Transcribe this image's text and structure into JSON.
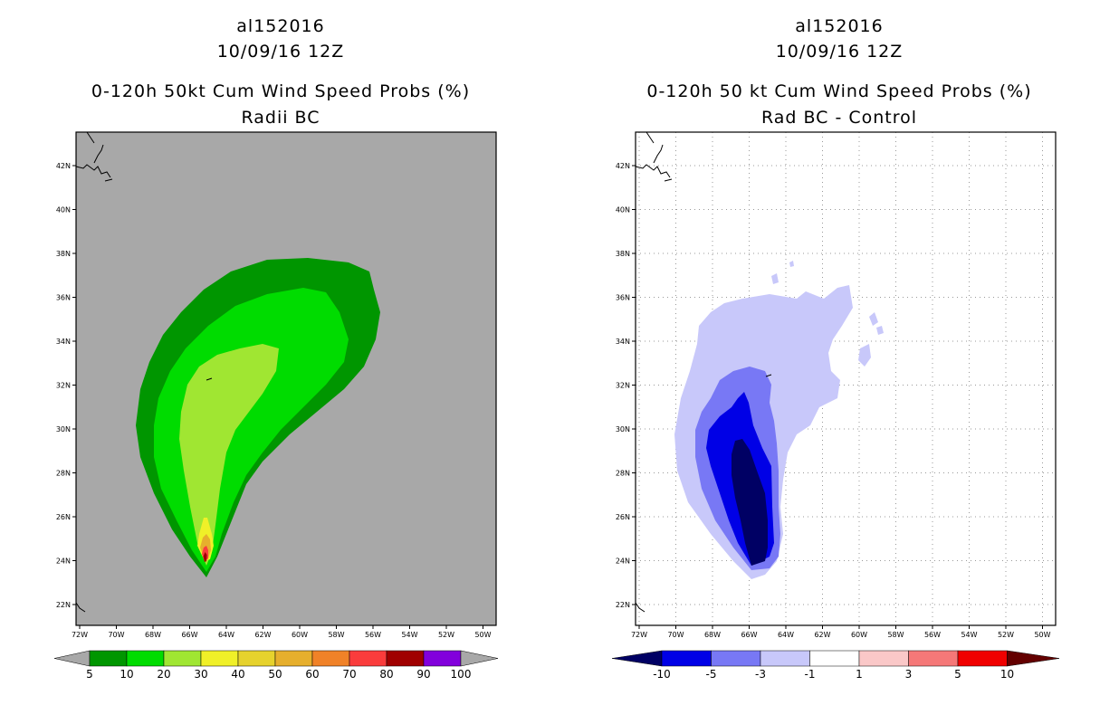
{
  "left": {
    "title_line1": "al152016",
    "title_line2": "10/09/16 12Z",
    "title_line3": "0-120h 50kt Cum Wind Speed Probs (%)",
    "title_line4": "Radii BC",
    "lat_labels": [
      "42N",
      "40N",
      "38N",
      "36N",
      "34N",
      "32N",
      "30N",
      "28N",
      "26N",
      "24N",
      "22N"
    ],
    "lon_labels": [
      "72W",
      "70W",
      "68W",
      "66W",
      "64W",
      "62W",
      "60W",
      "58W",
      "56W",
      "54W",
      "52W",
      "50W"
    ],
    "colorbar_labels": [
      "5",
      "10",
      "20",
      "30",
      "40",
      "50",
      "60",
      "70",
      "80",
      "90",
      "100"
    ],
    "colors": {
      "background": "#a8a8a8",
      "c5": "#009600",
      "c10": "#00dc00",
      "c20": "#a0e632",
      "c30": "#f0f028",
      "c40": "#e6d22d",
      "c50": "#e6af2d",
      "c60": "#f08228",
      "c70": "#fa3c3c",
      "c80": "#a00000",
      "c90": "#8200dc",
      "c100": "#a000c8"
    }
  },
  "right": {
    "title_line1": "al152016",
    "title_line2": "10/09/16 12Z",
    "title_line3": "0-120h 50 kt Cum Wind Speed Probs (%)",
    "title_line4": "Rad BC - Control",
    "lat_labels": [
      "42N",
      "40N",
      "38N",
      "36N",
      "34N",
      "32N",
      "30N",
      "28N",
      "26N",
      "24N",
      "22N"
    ],
    "lon_labels": [
      "72W",
      "70W",
      "68W",
      "66W",
      "64W",
      "62W",
      "60W",
      "58W",
      "56W",
      "54W",
      "52W",
      "50W"
    ],
    "colorbar_labels": [
      "-10",
      "-5",
      "-3",
      "-1",
      "1",
      "3",
      "5",
      "10"
    ],
    "colors": {
      "n10": "#000064",
      "n5": "#0000e6",
      "n3": "#7878f5",
      "n1": "#c8c8fa",
      "zero": "#ffffff",
      "p1": "#fac8c8",
      "p3": "#f57878",
      "p5": "#f00000",
      "p10": "#640000"
    }
  }
}
